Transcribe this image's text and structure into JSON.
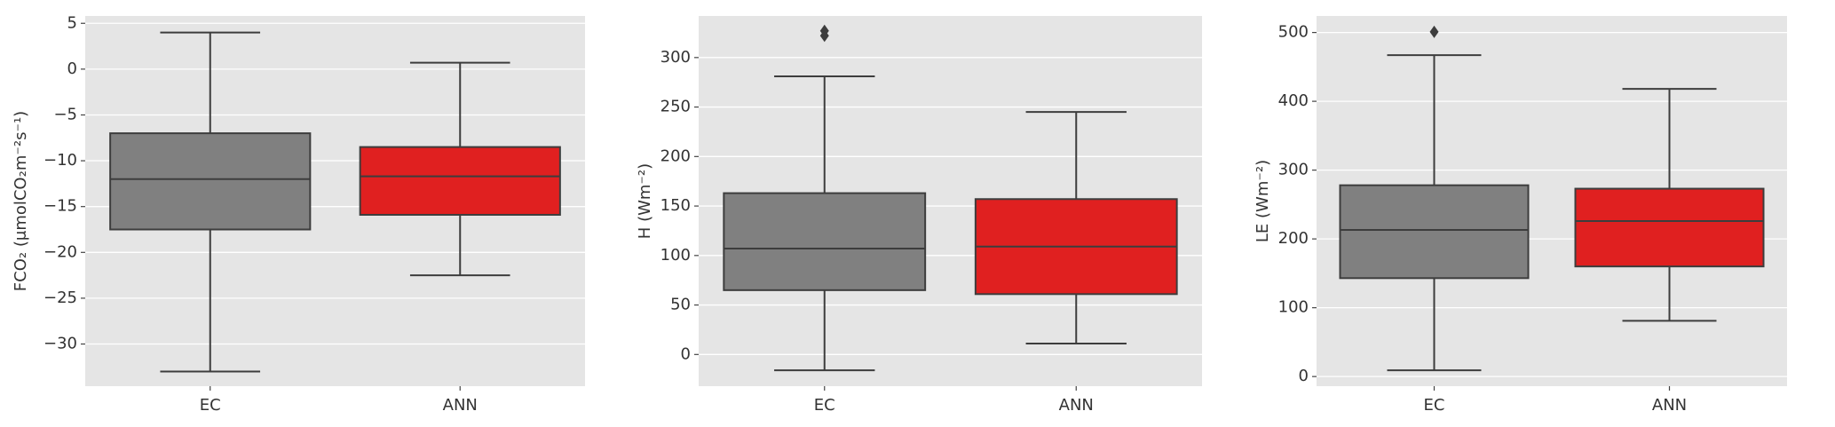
{
  "chart_data": [
    {
      "type": "box",
      "ylabel": "FCO₂ (μmolCO₂m⁻²s⁻¹)",
      "categories": [
        "EC",
        "ANN"
      ],
      "colors": [
        "#808080",
        "#e02020"
      ],
      "ylim": [
        -34.6,
        5.8
      ],
      "yticks": [
        {
          "value": -30,
          "label": "−30"
        },
        {
          "value": -25,
          "label": "−25"
        },
        {
          "value": -20,
          "label": "−20"
        },
        {
          "value": -15,
          "label": "−15"
        },
        {
          "value": -10,
          "label": "−10"
        },
        {
          "value": -5,
          "label": "−5"
        },
        0,
        5
      ],
      "stats": [
        {
          "whislo": -33,
          "q1": -17.5,
          "median": -12,
          "q3": -7,
          "whishi": 4,
          "fliers": []
        },
        {
          "whislo": -22.5,
          "q1": -15.9,
          "median": -11.7,
          "q3": -8.5,
          "whishi": 0.7,
          "fliers": []
        }
      ],
      "grid": true
    },
    {
      "type": "box",
      "ylabel": "H (Wm⁻²)",
      "categories": [
        "EC",
        "ANN"
      ],
      "colors": [
        "#808080",
        "#e02020"
      ],
      "ylim": [
        -32,
        342
      ],
      "yticks": [
        0,
        50,
        100,
        150,
        200,
        250,
        300
      ],
      "stats": [
        {
          "whislo": -16,
          "q1": 65,
          "median": 107,
          "q3": 163,
          "whishi": 281,
          "fliers": [
            322,
            327
          ]
        },
        {
          "whislo": 11,
          "q1": 61,
          "median": 109,
          "q3": 157,
          "whishi": 245,
          "fliers": []
        }
      ],
      "grid": true
    },
    {
      "type": "box",
      "ylabel": "LE (Wm⁻²)",
      "categories": [
        "EC",
        "ANN"
      ],
      "colors": [
        "#808080",
        "#e02020"
      ],
      "ylim": [
        -14,
        524
      ],
      "yticks": [
        0,
        100,
        200,
        300,
        400,
        500
      ],
      "stats": [
        {
          "whislo": 9,
          "q1": 143,
          "median": 213,
          "q3": 278,
          "whishi": 467,
          "fliers": [
            501
          ]
        },
        {
          "whislo": 81,
          "q1": 160,
          "median": 226,
          "q3": 273,
          "whishi": 418,
          "fliers": []
        }
      ],
      "grid": true
    }
  ]
}
